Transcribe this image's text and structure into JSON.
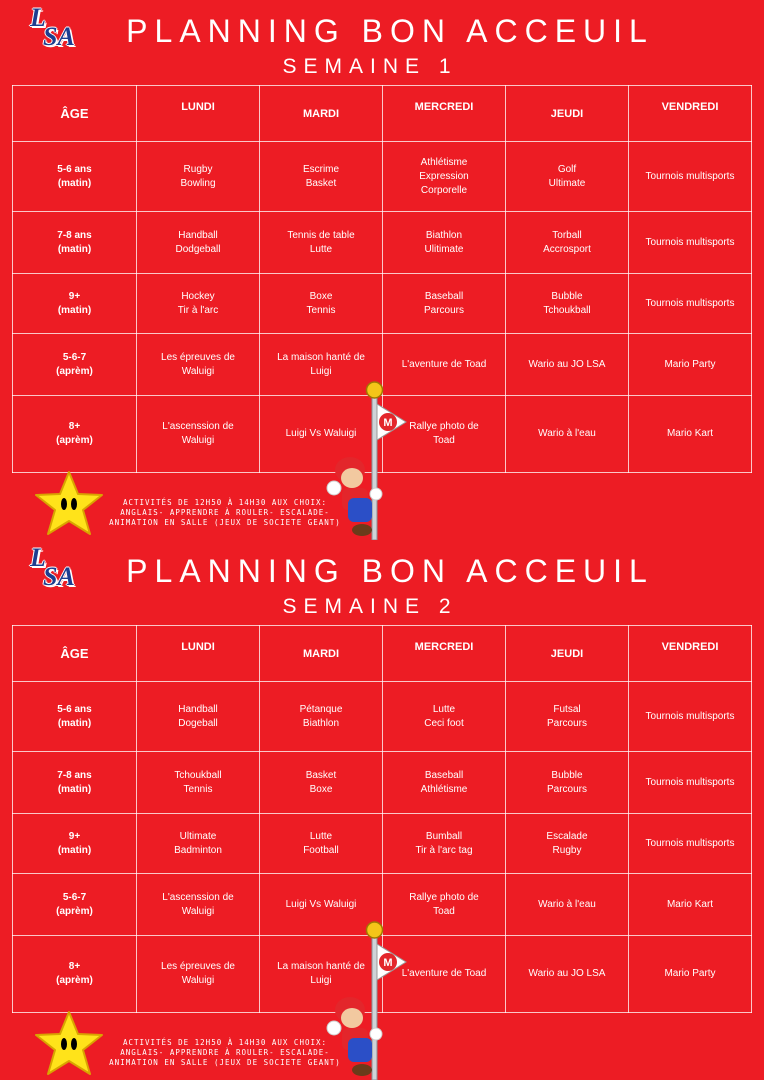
{
  "logo_text": "LSA",
  "weeks": [
    {
      "title": "PLANNING BON ACCEUIL",
      "subtitle": "SEMAINE 1",
      "headers": {
        "age": "ÂGE",
        "mon": "LUNDI",
        "tue": "MARDI",
        "wed": "MERCREDI",
        "thu": "JEUDI",
        "fri": "VENDREDI"
      },
      "rows": [
        {
          "age": [
            "5-6 ans",
            "(matin)"
          ],
          "mon": [
            "Rugby",
            "Bowling"
          ],
          "tue": [
            "Escrime",
            "Basket"
          ],
          "wed": [
            "Athlétisme",
            "Expression",
            "Corporelle"
          ],
          "thu": [
            "Golf",
            "Ultimate"
          ],
          "fri": [
            "Tournois multisports"
          ]
        },
        {
          "age": [
            "7-8 ans",
            "(matin)"
          ],
          "mon": [
            "Handball",
            "Dodgeball"
          ],
          "tue": [
            "Tennis de table",
            "Lutte"
          ],
          "wed": [
            "Biathlon",
            "Ulitimate"
          ],
          "thu": [
            "Torball",
            "Accrosport"
          ],
          "fri": [
            "Tournois multisports"
          ]
        },
        {
          "age": [
            "9+",
            "(matin)"
          ],
          "mon": [
            "Hockey",
            "Tir à l'arc"
          ],
          "tue": [
            "Boxe",
            "Tennis"
          ],
          "wed": [
            "Baseball",
            "Parcours"
          ],
          "thu": [
            "Bubble",
            "Tchoukball"
          ],
          "fri": [
            "Tournois multisports"
          ]
        },
        {
          "age": [
            "5-6-7",
            "(aprèm)"
          ],
          "mon": [
            "Les épreuves de",
            "Waluigi"
          ],
          "tue": [
            "La maison hanté de",
            "Luigi"
          ],
          "wed": [
            "L'aventure de Toad"
          ],
          "thu": [
            "Wario au JO LSA"
          ],
          "fri": [
            "Mario Party"
          ]
        },
        {
          "age": [
            "8+",
            "(aprèm)"
          ],
          "mon": [
            "L'ascenssion de",
            "Waluigi"
          ],
          "tue": [
            "Luigi Vs Waluigi"
          ],
          "wed": [
            "Rallye photo de",
            "Toad"
          ],
          "thu": [
            "Wario à l'eau"
          ],
          "fri": [
            "Mario Kart"
          ]
        }
      ],
      "note": "Activités de 12h50 à 14h30 aux choix: Anglais- Apprendre à rouler- Escalade- Animation en salle (jeux de societe geant)"
    },
    {
      "title": "PLANNING BON ACCEUIL",
      "subtitle": "SEMAINE 2",
      "headers": {
        "age": "ÂGE",
        "mon": "LUNDI",
        "tue": "MARDI",
        "wed": "MERCREDI",
        "thu": "JEUDI",
        "fri": "VENDREDI"
      },
      "rows": [
        {
          "age": [
            "5-6 ans",
            "(matin)"
          ],
          "mon": [
            "Handball",
            "Dogeball"
          ],
          "tue": [
            "Pétanque",
            "Biathlon"
          ],
          "wed": [
            "Lutte",
            "Ceci foot"
          ],
          "thu": [
            "Futsal",
            "Parcours"
          ],
          "fri": [
            "Tournois multisports"
          ]
        },
        {
          "age": [
            "7-8 ans",
            "(matin)"
          ],
          "mon": [
            "Tchoukball",
            "Tennis"
          ],
          "tue": [
            "Basket",
            "Boxe"
          ],
          "wed": [
            "Baseball",
            "Athlétisme"
          ],
          "thu": [
            "Bubble",
            "Parcours"
          ],
          "fri": [
            "Tournois multisports"
          ]
        },
        {
          "age": [
            "9+",
            "(matin)"
          ],
          "mon": [
            "Ultimate",
            "Badminton"
          ],
          "tue": [
            "Lutte",
            "Football"
          ],
          "wed": [
            "Bumball",
            "Tir à l'arc tag"
          ],
          "thu": [
            "Escalade",
            "Rugby"
          ],
          "fri": [
            "Tournois multisports"
          ]
        },
        {
          "age": [
            "5-6-7",
            "(aprèm)"
          ],
          "mon": [
            "L'ascenssion de",
            "Waluigi"
          ],
          "tue": [
            "Luigi Vs Waluigi"
          ],
          "wed": [
            "Rallye photo de",
            "Toad"
          ],
          "thu": [
            "Wario à l'eau"
          ],
          "fri": [
            "Mario Kart"
          ]
        },
        {
          "age": [
            "8+",
            "(aprèm)"
          ],
          "mon": [
            "Les épreuves de",
            "Waluigi"
          ],
          "tue": [
            "La maison hanté de",
            "Luigi"
          ],
          "wed": [
            "L'aventure de Toad"
          ],
          "thu": [
            "Wario au JO LSA"
          ],
          "fri": [
            "Mario Party"
          ]
        }
      ],
      "note": "Activités de 12h50 à 14h30 aux choix: Anglais- Apprendre à rouler- Escalade- Animation en salle (jeux de societe geant)"
    }
  ]
}
